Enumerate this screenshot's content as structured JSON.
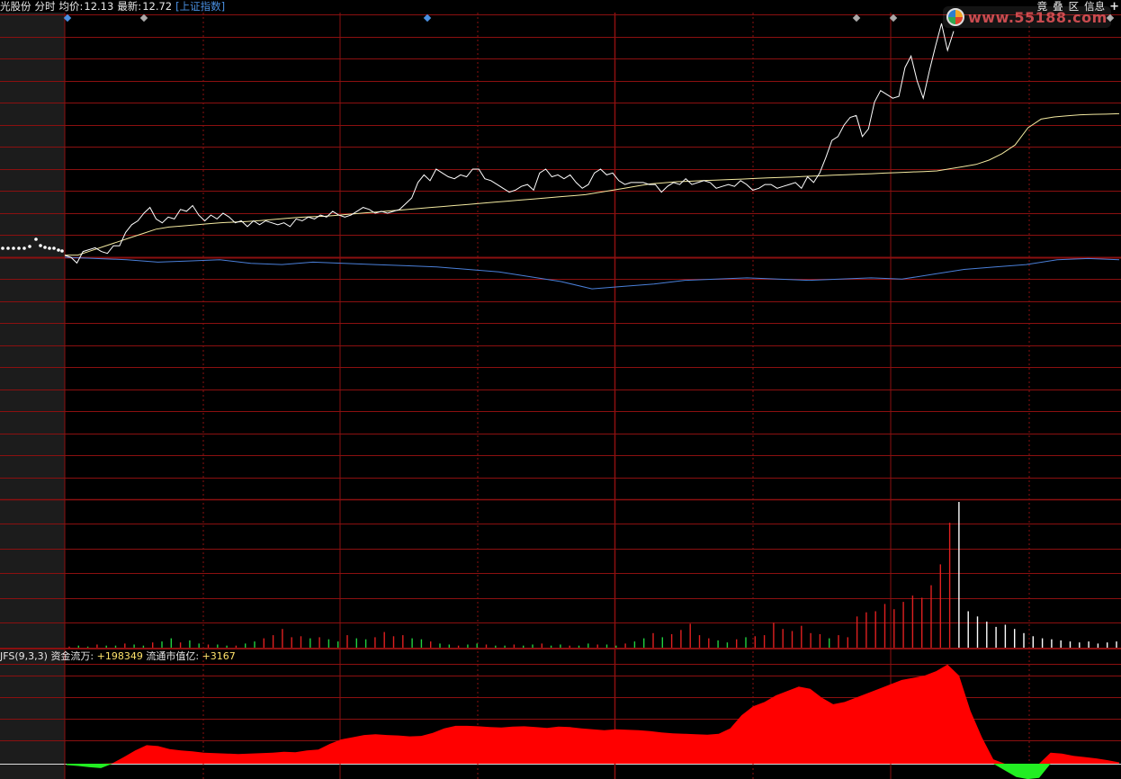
{
  "header": {
    "stock_name": "光股份",
    "mode": "分时",
    "avg_label": "均价:",
    "avg_value": "12.13",
    "latest_label": "最新:",
    "latest_value": "12.72",
    "index_link": "[上证指数]"
  },
  "toolbar": {
    "items": [
      "竟",
      "叠",
      "区",
      "信息"
    ],
    "plus": "+"
  },
  "watermark": {
    "text": "www.55188.com"
  },
  "indicator": {
    "name": "JFS(9,3,3)",
    "flow_label": "资金流万:",
    "flow_value": "+198349",
    "cap_label": "流通市值亿:",
    "cap_value": "+3167"
  },
  "colors": {
    "background": "#000000",
    "grid": "#8b1010",
    "price_line": "#ffffff",
    "avg_line": "#f3e9a0",
    "index_line": "#4a7fd8",
    "volume_up": "#e02020",
    "volume_down": "#20d040",
    "flow_positive": "#ff0000",
    "flow_negative": "#22ee22",
    "marker": "#4a90e2"
  },
  "chart_data": [
    {
      "type": "line",
      "series": [
        {
          "values": [
            0.1,
            0.0,
            -0.3,
            0.3,
            0.4,
            0.5,
            0.3,
            0.2,
            0.6,
            0.6,
            1.3,
            1.7,
            1.9,
            2.3,
            2.6,
            2.0,
            1.8,
            2.1,
            2.0,
            2.5,
            2.4,
            2.7,
            2.2,
            1.9,
            2.2,
            2.0,
            2.3,
            2.1,
            1.8,
            1.9,
            1.6,
            1.9,
            1.7,
            1.9,
            1.8,
            1.7,
            1.8,
            1.6,
            2.0,
            1.9,
            2.1,
            2.0,
            2.2,
            2.1,
            2.4,
            2.2,
            2.1,
            2.2,
            2.4,
            2.6,
            2.5,
            2.3,
            2.4,
            2.3,
            2.4,
            2.5,
            2.8,
            3.1,
            3.9,
            4.3,
            4.0,
            4.6,
            4.4,
            4.2,
            4.1,
            4.3,
            4.2,
            4.6,
            4.6,
            4.1,
            4.0,
            3.8,
            3.6,
            3.4,
            3.5,
            3.7,
            3.8,
            3.5,
            4.4,
            4.6,
            4.2,
            4.3,
            4.1,
            4.3,
            3.9,
            3.6,
            3.8,
            4.4,
            4.6,
            4.3,
            4.4,
            4.0,
            3.8,
            3.9,
            3.9,
            3.9,
            3.8,
            3.8,
            3.4,
            3.7,
            3.9,
            3.8,
            4.1,
            3.8,
            3.9,
            4.0,
            3.9,
            3.6,
            3.7,
            3.8,
            3.7,
            4.0,
            3.8,
            3.5,
            3.6,
            3.8,
            3.8,
            3.6,
            3.7,
            3.8,
            3.9,
            3.6,
            4.2,
            3.9,
            4.4,
            5.2,
            6.1,
            6.3,
            6.9,
            7.3,
            7.4,
            6.3,
            6.7,
            8.1,
            8.7,
            8.5,
            8.3,
            8.4,
            9.9,
            10.5,
            9.2,
            8.3,
            9.7,
            11.0,
            12.2,
            10.8,
            11.8
          ]
        },
        {
          "values": [
            0.1,
            0.1,
            0.3,
            0.5,
            0.7,
            0.9,
            1.1,
            1.3,
            1.4,
            1.45,
            1.5,
            1.55,
            1.6,
            1.63,
            1.66,
            1.7,
            1.75,
            1.8,
            1.85,
            1.88,
            1.9,
            1.95,
            2.0,
            2.05,
            2.1,
            2.15,
            2.2,
            2.25,
            2.3,
            2.35,
            2.4,
            2.45,
            2.5,
            2.55,
            2.6,
            2.65,
            2.7,
            2.75,
            2.8,
            2.85,
            2.9,
            3.0,
            3.1,
            3.2,
            3.3,
            3.4,
            3.45,
            3.5,
            3.52,
            3.55,
            3.57,
            3.6,
            3.62,
            3.65,
            3.68,
            3.7,
            3.72,
            3.75,
            3.77,
            3.8,
            3.82,
            3.85,
            3.87,
            3.9,
            3.92,
            3.95,
            3.97,
            4.0,
            4.1,
            4.2,
            4.3,
            4.5,
            4.8,
            5.2,
            6.0,
            6.4,
            6.5,
            6.55,
            6.6,
            6.62,
            6.63,
            6.65
          ]
        },
        {
          "values": [
            0.0,
            -0.05,
            -0.1,
            -0.2,
            -0.15,
            -0.1,
            -0.25,
            -0.3,
            -0.2,
            -0.25,
            -0.3,
            -0.35,
            -0.4,
            -0.5,
            -0.6,
            -0.8,
            -1.0,
            -1.3,
            -1.2,
            -1.1,
            -0.95,
            -0.9,
            -0.85,
            -0.9,
            -0.95,
            -0.9,
            -0.85,
            -0.9,
            -0.7,
            -0.5,
            -0.4,
            -0.3,
            -0.1,
            -0.05,
            -0.1
          ]
        }
      ]
    },
    {
      "type": "bar",
      "series": [
        {
          "values": [
            1,
            2,
            1,
            3,
            2,
            2,
            4,
            3,
            2,
            5,
            6,
            9,
            5,
            7,
            4,
            3,
            3,
            2,
            2,
            4,
            6,
            9,
            12,
            18,
            10,
            11,
            9,
            10,
            8,
            6,
            12,
            9,
            8,
            10,
            15,
            11,
            12,
            9,
            8,
            6,
            4,
            3,
            2,
            3,
            4,
            3,
            2,
            2,
            3,
            2,
            3,
            4,
            2,
            3,
            2,
            2,
            4,
            3,
            3,
            2,
            4,
            6,
            9,
            14,
            10,
            13,
            17,
            23,
            12,
            9,
            7,
            5,
            8,
            10,
            11,
            12,
            24,
            18,
            16,
            21,
            14,
            13,
            9,
            12,
            10,
            30,
            34,
            35,
            42,
            37,
            44,
            50,
            48,
            60,
            80,
            120,
            140,
            35,
            30,
            25,
            20,
            22,
            18,
            14,
            11,
            9,
            8,
            7,
            6,
            5,
            6,
            4,
            5,
            6
          ]
        }
      ]
    },
    {
      "type": "area",
      "series": [
        {
          "values": [
            -0.3,
            -0.5,
            -0.8,
            -1.0,
            0.1,
            1.5,
            3.0,
            4.2,
            4.0,
            3.3,
            3.0,
            2.8,
            2.5,
            2.4,
            2.3,
            2.2,
            2.3,
            2.4,
            2.5,
            2.7,
            2.6,
            3.0,
            3.2,
            4.5,
            5.5,
            6.0,
            6.5,
            6.7,
            6.5,
            6.4,
            6.2,
            6.3,
            7.0,
            8.0,
            8.6,
            8.6,
            8.5,
            8.3,
            8.2,
            8.4,
            8.5,
            8.3,
            8.1,
            8.4,
            8.3,
            8.0,
            7.8,
            7.6,
            7.8,
            7.7,
            7.6,
            7.4,
            7.1,
            6.9,
            6.8,
            6.7,
            6.6,
            6.8,
            8.0,
            11.0,
            13.0,
            14.0,
            15.5,
            16.5,
            17.5,
            17.0,
            15.0,
            13.5,
            14.0,
            15.0,
            16.0,
            17.0,
            18.0,
            19.0,
            19.5,
            20.0,
            21.0,
            22.5,
            20.0,
            12.0,
            6.0,
            1.0,
            -1.5,
            -3.0,
            -3.5,
            -3.2,
            2.5,
            2.3,
            1.8,
            1.5,
            1.2,
            0.8,
            0.3
          ]
        }
      ]
    }
  ]
}
